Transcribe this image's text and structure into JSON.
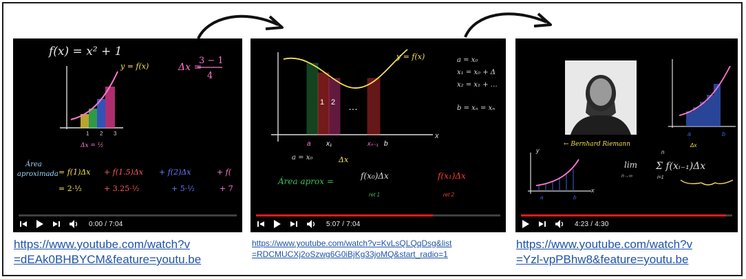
{
  "videos": [
    {
      "time_label": "0:00 / 7:04",
      "progress": 0.0,
      "link_line1": "https://www.youtube.com/watch?v",
      "link_line2": "=dEAk0BHBYCM&feature=youtu.be",
      "board": {
        "title": "f(x) = x² + 1",
        "curve_label": "y = f(x)",
        "dx_label": "Δx =",
        "dx_frac_num": "3 − 1",
        "dx_frac_den": "4",
        "dx_value": "Δx = ½",
        "area_word1": "Área",
        "area_word2": "aproximada",
        "sum_terms": [
          "= f(1)Δx",
          "+ f(1.5)Δx",
          "+ f(2)Δx",
          "+ f("
        ],
        "values_row": [
          "= 2·½",
          "+ 3.25·½",
          "+ 5·½",
          "+ 7"
        ],
        "ticks": [
          "1",
          "2",
          "3"
        ]
      }
    },
    {
      "time_label": "5:07 / 7:04",
      "progress": 0.725,
      "link_line1": "https://www.youtube.com/watch?v=KvLsQLQqDsg&list",
      "link_line2": "=RDCMUCXj2oSzwg6G0iBjKg33joMQ&start_radio=1",
      "board": {
        "curve_label": "y = f(x)",
        "axis_x": "x",
        "rect_labels": [
          "1",
          "2"
        ],
        "x_labels": [
          "a",
          "x₁",
          "xₙ₋₁",
          "b"
        ],
        "a_eq": "a = x₀",
        "dx_label": "Δx",
        "area_label": "Área aprox =",
        "term1": "f(x₀)Δx",
        "term2": "f(x₁)Δx",
        "ret1": "ret 1",
        "ret2": "ret 2",
        "right_eqs": [
          "a = x₀",
          "x₁ = x₀ + Δ",
          "x₂ = x₁ + …",
          "b = xₙ = xₙ"
        ],
        "dots": "…"
      }
    },
    {
      "time_label": "4:23 / 4:30",
      "progress": 0.97,
      "link_line1": "https://www.youtube.com/watch?v",
      "link_line2": "=Yzl-vpPBhw8&feature=youtu.be",
      "board": {
        "caption": "← Bernhard Riemann",
        "lim_label": "lim",
        "lim_sub": "n→∞",
        "sum_expr": "Σ f(xᵢ₋₁)Δx",
        "sum_top": "n",
        "sum_bottom": "i=1",
        "axis_y": "y",
        "axis_x": "x",
        "a_label": "a",
        "b_label": "b",
        "dx_label": "Δx"
      }
    }
  ],
  "colors": {
    "progress": "#e31b1b",
    "link": "#1f53a8",
    "board": "#000000"
  }
}
